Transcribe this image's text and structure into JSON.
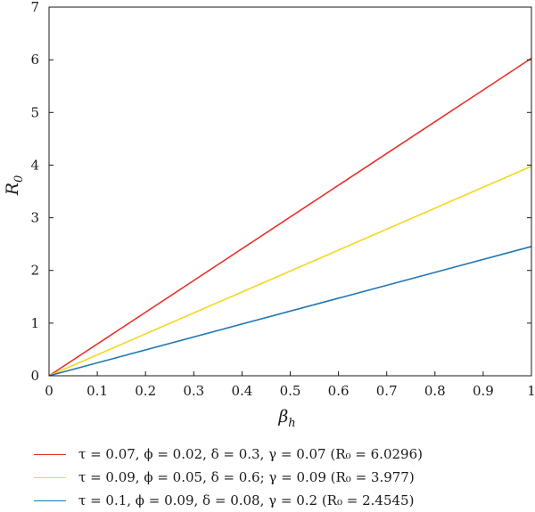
{
  "chart_data": {
    "type": "line",
    "xlabel": "β",
    "xlabel_sub": "h",
    "ylabel": "R",
    "ylabel_sub": "0",
    "xlim": [
      0,
      1
    ],
    "ylim": [
      0,
      7
    ],
    "xticks": [
      "0",
      "0.1",
      "0.2",
      "0.3",
      "0.4",
      "0.5",
      "0.6",
      "0.7",
      "0.8",
      "0.9",
      "1"
    ],
    "yticks": [
      "0",
      "1",
      "2",
      "3",
      "4",
      "5",
      "6",
      "7"
    ],
    "grid": false,
    "legend_position": "bottom",
    "series": [
      {
        "name": "τ = 0.07, ϕ = 0.02, δ = 0.3, γ = 0.07 (R₀ = 6.0296)",
        "color": "#e8302a",
        "x": [
          0,
          1
        ],
        "y": [
          0,
          6.0296
        ]
      },
      {
        "name": "τ = 0.09, ϕ = 0.05, δ = 0.6; γ = 0.09 (R₀ = 3.977)",
        "color": "#f2d81f",
        "x": [
          0,
          1
        ],
        "y": [
          0,
          3.977
        ]
      },
      {
        "name": "τ = 0.1, ϕ = 0.09, δ = 0.08, γ = 0.2 (R₀ = 2.4545)",
        "color": "#1f77b4",
        "x": [
          0,
          1
        ],
        "y": [
          0,
          2.4545
        ]
      }
    ]
  }
}
